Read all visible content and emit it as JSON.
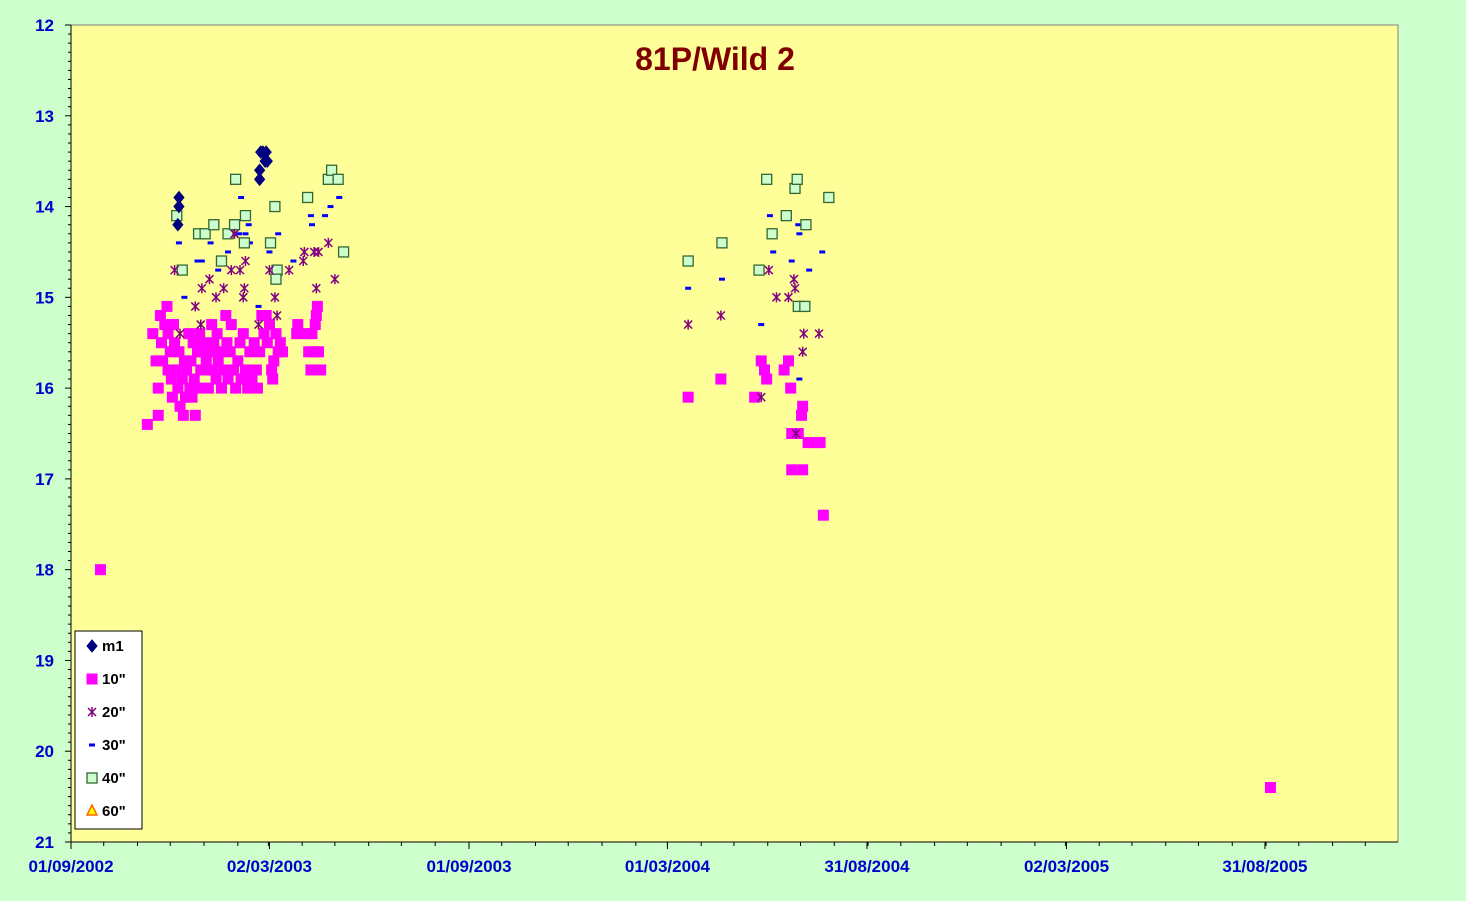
{
  "chart_data": {
    "type": "scatter",
    "title": "81P/Wild 2",
    "xlabel": "",
    "ylabel": "",
    "x_axis": {
      "type": "date",
      "range": [
        "2002-09-01",
        "2005-12-31"
      ],
      "ticks": [
        {
          "date": "2002-09-01",
          "label": "01/09/2002"
        },
        {
          "date": "2003-03-02",
          "label": "02/03/2003"
        },
        {
          "date": "2003-09-01",
          "label": "01/09/2003"
        },
        {
          "date": "2004-03-01",
          "label": "01/03/2004"
        },
        {
          "date": "2004-08-31",
          "label": "31/08/2004"
        },
        {
          "date": "2005-03-02",
          "label": "02/03/2005"
        },
        {
          "date": "2005-08-31",
          "label": "31/08/2005"
        }
      ]
    },
    "y_axis": {
      "range": [
        12,
        21
      ],
      "inverted": true,
      "ticks": [
        12,
        13,
        14,
        15,
        16,
        17,
        18,
        19,
        20,
        21
      ]
    },
    "grid": false,
    "legend_position": "bottom-left",
    "colors": {
      "page_background": "#ccffcc",
      "plot_background": "#ffff99",
      "axis_text": "#0000cc",
      "title": "#800000"
    },
    "series": [
      {
        "name": "m1",
        "marker": "diamond",
        "color": "#000080",
        "points": [
          [
            "2002-12-09",
            13.9
          ],
          [
            "2002-12-09",
            14.0
          ],
          [
            "2002-12-08",
            14.2
          ],
          [
            "2003-02-22",
            13.4
          ],
          [
            "2003-02-21",
            13.6
          ],
          [
            "2003-02-21",
            13.7
          ],
          [
            "2003-02-24",
            13.4
          ],
          [
            "2003-02-27",
            13.4
          ],
          [
            "2003-02-26",
            13.5
          ],
          [
            "2003-02-28",
            13.5
          ]
        ]
      },
      {
        "name": "10\"",
        "marker": "square",
        "color": "#ff00ff",
        "points": [
          [
            "2002-09-28",
            18.0
          ],
          [
            "2002-11-10",
            16.4
          ],
          [
            "2002-11-15",
            15.4
          ],
          [
            "2002-11-18",
            15.7
          ],
          [
            "2002-11-20",
            16.0
          ],
          [
            "2002-11-20",
            16.3
          ],
          [
            "2002-11-22",
            15.2
          ],
          [
            "2002-11-23",
            15.5
          ],
          [
            "2002-11-24",
            15.7
          ],
          [
            "2002-11-26",
            15.3
          ],
          [
            "2002-11-28",
            15.1
          ],
          [
            "2002-11-29",
            15.4
          ],
          [
            "2002-11-29",
            15.8
          ],
          [
            "2002-12-01",
            15.6
          ],
          [
            "2002-12-02",
            15.9
          ],
          [
            "2002-12-03",
            16.1
          ],
          [
            "2002-12-04",
            15.3
          ],
          [
            "2002-12-05",
            15.5
          ],
          [
            "2002-12-06",
            15.8
          ],
          [
            "2002-12-08",
            16.0
          ],
          [
            "2002-12-09",
            15.6
          ],
          [
            "2002-12-10",
            16.2
          ],
          [
            "2002-12-12",
            15.9
          ],
          [
            "2002-12-13",
            16.3
          ],
          [
            "2002-12-14",
            15.7
          ],
          [
            "2002-12-15",
            16.1
          ],
          [
            "2002-12-16",
            15.8
          ],
          [
            "2002-12-18",
            15.4
          ],
          [
            "2002-12-19",
            16.0
          ],
          [
            "2002-12-20",
            15.7
          ],
          [
            "2002-12-21",
            16.1
          ],
          [
            "2002-12-22",
            15.5
          ],
          [
            "2002-12-23",
            15.9
          ],
          [
            "2002-12-24",
            16.3
          ],
          [
            "2002-12-26",
            15.6
          ],
          [
            "2002-12-27",
            16.0
          ],
          [
            "2002-12-28",
            15.4
          ],
          [
            "2002-12-29",
            15.8
          ],
          [
            "2002-12-30",
            15.6
          ],
          [
            "2003-01-01",
            15.5
          ],
          [
            "2003-01-02",
            15.8
          ],
          [
            "2003-01-03",
            15.7
          ],
          [
            "2003-01-05",
            16.0
          ],
          [
            "2003-01-06",
            15.6
          ],
          [
            "2003-01-08",
            15.3
          ],
          [
            "2003-01-09",
            15.8
          ],
          [
            "2003-01-10",
            15.5
          ],
          [
            "2003-01-12",
            15.9
          ],
          [
            "2003-01-13",
            15.4
          ],
          [
            "2003-01-14",
            15.7
          ],
          [
            "2003-01-16",
            15.6
          ],
          [
            "2003-01-17",
            16.0
          ],
          [
            "2003-01-19",
            15.8
          ],
          [
            "2003-01-21",
            15.2
          ],
          [
            "2003-01-22",
            15.5
          ],
          [
            "2003-01-23",
            15.9
          ],
          [
            "2003-01-25",
            15.6
          ],
          [
            "2003-01-26",
            15.3
          ],
          [
            "2003-01-28",
            15.8
          ],
          [
            "2003-01-30",
            16.0
          ],
          [
            "2003-02-01",
            15.7
          ],
          [
            "2003-02-03",
            15.5
          ],
          [
            "2003-02-04",
            15.9
          ],
          [
            "2003-02-06",
            15.4
          ],
          [
            "2003-02-08",
            15.8
          ],
          [
            "2003-02-10",
            16.0
          ],
          [
            "2003-02-12",
            15.6
          ],
          [
            "2003-02-14",
            15.9
          ],
          [
            "2003-02-16",
            15.5
          ],
          [
            "2003-02-18",
            15.8
          ],
          [
            "2003-02-19",
            16.0
          ],
          [
            "2003-02-21",
            15.6
          ],
          [
            "2003-02-23",
            15.2
          ],
          [
            "2003-02-25",
            15.4
          ],
          [
            "2003-02-27",
            15.2
          ],
          [
            "2003-02-28",
            15.5
          ],
          [
            "2003-03-02",
            15.3
          ],
          [
            "2003-03-04",
            15.8
          ],
          [
            "2003-03-05",
            15.9
          ],
          [
            "2003-03-06",
            15.7
          ],
          [
            "2003-03-08",
            15.4
          ],
          [
            "2003-03-10",
            15.6
          ],
          [
            "2003-03-12",
            15.5
          ],
          [
            "2003-03-14",
            15.6
          ],
          [
            "2003-03-27",
            15.4
          ],
          [
            "2003-03-28",
            15.3
          ],
          [
            "2003-04-05",
            15.4
          ],
          [
            "2003-04-07",
            15.6
          ],
          [
            "2003-04-09",
            15.8
          ],
          [
            "2003-04-10",
            15.4
          ],
          [
            "2003-04-12",
            15.6
          ],
          [
            "2003-04-13",
            15.3
          ],
          [
            "2003-04-14",
            15.2
          ],
          [
            "2003-04-15",
            15.1
          ],
          [
            "2003-04-16",
            15.6
          ],
          [
            "2003-04-18",
            15.8
          ],
          [
            "2004-03-20",
            16.1
          ],
          [
            "2004-04-19",
            15.9
          ],
          [
            "2004-05-20",
            16.1
          ],
          [
            "2004-05-26",
            15.7
          ],
          [
            "2004-05-29",
            15.8
          ],
          [
            "2004-05-31",
            15.9
          ],
          [
            "2004-06-16",
            15.8
          ],
          [
            "2004-06-20",
            15.7
          ],
          [
            "2004-06-22",
            16.0
          ],
          [
            "2004-06-23",
            16.5
          ],
          [
            "2004-06-23",
            16.9
          ],
          [
            "2004-06-29",
            16.5
          ],
          [
            "2004-07-02",
            16.3
          ],
          [
            "2004-07-03",
            16.2
          ],
          [
            "2004-07-03",
            16.9
          ],
          [
            "2004-07-08",
            16.6
          ],
          [
            "2004-07-14",
            16.6
          ],
          [
            "2004-07-19",
            16.6
          ],
          [
            "2004-07-22",
            17.4
          ],
          [
            "2005-09-05",
            20.4
          ]
        ]
      },
      {
        "name": "20\"",
        "marker": "star",
        "color": "#800080",
        "points": [
          [
            "2002-12-05",
            14.7
          ],
          [
            "2002-12-10",
            15.4
          ],
          [
            "2002-12-24",
            15.1
          ],
          [
            "2002-12-29",
            15.3
          ],
          [
            "2002-12-30",
            14.9
          ],
          [
            "2003-01-06",
            14.8
          ],
          [
            "2003-01-12",
            15.0
          ],
          [
            "2003-01-19",
            14.9
          ],
          [
            "2003-01-26",
            14.7
          ],
          [
            "2003-01-29",
            14.3
          ],
          [
            "2003-02-03",
            14.7
          ],
          [
            "2003-02-06",
            15.0
          ],
          [
            "2003-02-07",
            14.9
          ],
          [
            "2003-02-08",
            14.6
          ],
          [
            "2003-02-20",
            15.3
          ],
          [
            "2003-03-02",
            14.7
          ],
          [
            "2003-03-07",
            15.0
          ],
          [
            "2003-03-09",
            15.2
          ],
          [
            "2003-03-20",
            14.7
          ],
          [
            "2003-04-02",
            14.6
          ],
          [
            "2003-04-03",
            14.5
          ],
          [
            "2003-04-12",
            14.5
          ],
          [
            "2003-04-14",
            14.9
          ],
          [
            "2003-04-16",
            14.5
          ],
          [
            "2003-04-25",
            14.4
          ],
          [
            "2003-05-01",
            14.8
          ],
          [
            "2004-03-20",
            15.3
          ],
          [
            "2004-04-19",
            15.2
          ],
          [
            "2004-06-02",
            14.7
          ],
          [
            "2004-06-09",
            15.0
          ],
          [
            "2004-06-20",
            15.0
          ],
          [
            "2004-06-25",
            14.8
          ],
          [
            "2004-06-26",
            14.9
          ],
          [
            "2004-07-03",
            15.6
          ],
          [
            "2004-07-04",
            15.4
          ],
          [
            "2004-07-18",
            15.4
          ],
          [
            "2004-06-27",
            16.5
          ],
          [
            "2004-05-26",
            16.1
          ]
        ]
      },
      {
        "name": "30\"",
        "marker": "dash",
        "color": "#0000ff",
        "points": [
          [
            "2002-12-09",
            14.4
          ],
          [
            "2002-12-14",
            15.0
          ],
          [
            "2002-12-26",
            14.6
          ],
          [
            "2002-12-30",
            14.6
          ],
          [
            "2003-01-07",
            14.4
          ],
          [
            "2003-01-14",
            14.7
          ],
          [
            "2003-01-23",
            14.5
          ],
          [
            "2003-02-02",
            14.3
          ],
          [
            "2003-02-04",
            13.9
          ],
          [
            "2003-02-08",
            14.3
          ],
          [
            "2003-02-12",
            14.4
          ],
          [
            "2003-02-11",
            14.2
          ],
          [
            "2003-02-20",
            15.1
          ],
          [
            "2003-03-02",
            14.5
          ],
          [
            "2003-03-10",
            14.3
          ],
          [
            "2003-03-24",
            14.6
          ],
          [
            "2003-04-09",
            14.1
          ],
          [
            "2003-04-10",
            14.2
          ],
          [
            "2003-04-22",
            14.1
          ],
          [
            "2003-04-27",
            14.0
          ],
          [
            "2003-05-05",
            13.9
          ],
          [
            "2004-03-20",
            14.9
          ],
          [
            "2004-04-20",
            14.8
          ],
          [
            "2004-05-26",
            15.3
          ],
          [
            "2004-06-03",
            14.1
          ],
          [
            "2004-06-06",
            14.5
          ],
          [
            "2004-06-23",
            14.6
          ],
          [
            "2004-06-29",
            14.2
          ],
          [
            "2004-06-30",
            14.3
          ],
          [
            "2004-06-30",
            15.9
          ],
          [
            "2004-07-09",
            14.7
          ],
          [
            "2004-07-21",
            14.5
          ]
        ]
      },
      {
        "name": "40\"",
        "marker": "open-square",
        "color": "#336633",
        "points": [
          [
            "2002-12-07",
            14.1
          ],
          [
            "2002-12-12",
            14.7
          ],
          [
            "2002-12-27",
            14.3
          ],
          [
            "2003-01-02",
            14.3
          ],
          [
            "2003-01-10",
            14.2
          ],
          [
            "2003-01-17",
            14.6
          ],
          [
            "2003-01-23",
            14.3
          ],
          [
            "2003-01-29",
            14.2
          ],
          [
            "2003-01-30",
            13.7
          ],
          [
            "2003-02-08",
            14.1
          ],
          [
            "2003-02-07",
            14.4
          ],
          [
            "2003-03-03",
            14.4
          ],
          [
            "2003-03-07",
            14.0
          ],
          [
            "2003-03-09",
            14.7
          ],
          [
            "2003-03-08",
            14.8
          ],
          [
            "2003-04-06",
            13.9
          ],
          [
            "2003-04-25",
            13.7
          ],
          [
            "2003-04-28",
            13.6
          ],
          [
            "2003-05-04",
            13.7
          ],
          [
            "2003-05-09",
            14.5
          ],
          [
            "2004-03-20",
            14.6
          ],
          [
            "2004-04-20",
            14.4
          ],
          [
            "2004-05-31",
            13.7
          ],
          [
            "2004-06-05",
            14.3
          ],
          [
            "2004-06-18",
            14.1
          ],
          [
            "2004-06-26",
            13.8
          ],
          [
            "2004-06-28",
            13.7
          ],
          [
            "2004-06-29",
            15.1
          ],
          [
            "2004-07-06",
            14.2
          ],
          [
            "2004-07-05",
            15.1
          ],
          [
            "2004-07-27",
            13.9
          ],
          [
            "2004-05-24",
            14.7
          ]
        ]
      },
      {
        "name": "60\"",
        "marker": "triangle",
        "color": "#ff6600",
        "points": []
      }
    ]
  }
}
